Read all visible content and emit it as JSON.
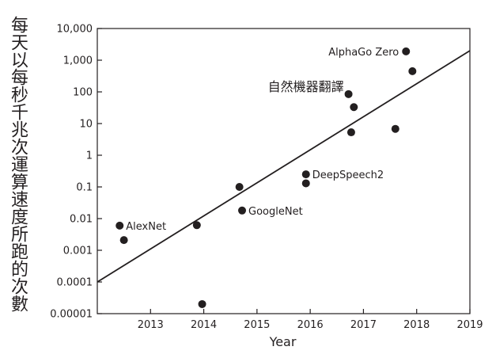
{
  "chart_data": {
    "type": "scatter",
    "ylabel": "每天以每秒千兆次運算速度所跑的次數",
    "xlabel": "Year",
    "y_scale": "log",
    "xlim": [
      2012,
      2019
    ],
    "ylim": [
      1e-05,
      10000
    ],
    "x_ticks": [
      "2013",
      "2014",
      "2015",
      "2016",
      "2017",
      "2018",
      "2019"
    ],
    "y_ticks": [
      "0.00001",
      "0.0001",
      "0.001",
      "0.01",
      "0.1",
      "1",
      "10",
      "100",
      "1,000",
      "10,000"
    ],
    "grid": false,
    "color": "#231f20",
    "points": [
      {
        "x": 2012.42,
        "y": 0.006,
        "label": "AlexNet"
      },
      {
        "x": 2012.5,
        "y": 0.0021,
        "label": ""
      },
      {
        "x": 2013.87,
        "y": 0.0062,
        "label": ""
      },
      {
        "x": 2013.97,
        "y": 2e-05,
        "label": ""
      },
      {
        "x": 2014.67,
        "y": 0.1,
        "label": ""
      },
      {
        "x": 2014.72,
        "y": 0.018,
        "label": "GoogleNet"
      },
      {
        "x": 2015.92,
        "y": 0.25,
        "label": "DeepSpeech2"
      },
      {
        "x": 2015.92,
        "y": 0.13,
        "label": ""
      },
      {
        "x": 2016.72,
        "y": 85,
        "label": "自然機器翻譯"
      },
      {
        "x": 2016.82,
        "y": 33,
        "label": ""
      },
      {
        "x": 2016.77,
        "y": 5.3,
        "label": ""
      },
      {
        "x": 2017.6,
        "y": 6.8,
        "label": ""
      },
      {
        "x": 2017.8,
        "y": 1900,
        "label": "AlphaGo Zero"
      },
      {
        "x": 2017.92,
        "y": 450,
        "label": ""
      }
    ],
    "trend_line": {
      "x": [
        2012,
        2019
      ],
      "y": [
        0.0001,
        2000
      ]
    }
  }
}
